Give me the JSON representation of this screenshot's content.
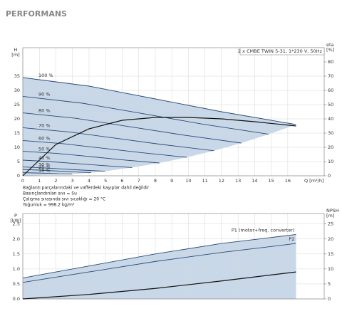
{
  "header": "PERFORMANS",
  "notes": [
    "Bağlantı parçalarındaki ve vafferdeki kayıplar dahil değildir",
    "Basınçlandırılan sıvı = Su",
    "Çalışma sırasında sıvı sıcaklığı = 20 °C",
    "Yoğunluk = 998.2 kg/m³"
  ],
  "chart_data": [
    {
      "type": "line",
      "title": "2 x CMBE TWIN 5-31, 1*230 V, 50Hz",
      "ylabel": "H",
      "yunit": "[m]",
      "y2label": "eta",
      "y2unit": "[%]",
      "xlabel": "Q [m³/h]",
      "xlim": [
        0,
        18.2
      ],
      "xticks": [
        0,
        1,
        2,
        3,
        4,
        5,
        6,
        7,
        8,
        9,
        10,
        11,
        12,
        13,
        14,
        15,
        16
      ],
      "ylim": [
        0,
        45
      ],
      "yticks": [
        0,
        5,
        10,
        15,
        20,
        25,
        30,
        35
      ],
      "y2lim": [
        0,
        90
      ],
      "y2ticks": [
        0,
        10,
        20,
        30,
        40,
        50,
        60,
        70,
        80
      ],
      "grid": true,
      "shade": true,
      "shade_color": "#c8d8e8",
      "series": [
        {
          "name": "100 %",
          "color": "#2b4a78",
          "x": [
            0,
            4,
            8,
            12,
            16.5
          ],
          "values": [
            34.5,
            31.5,
            27,
            22.5,
            18
          ]
        },
        {
          "name": "90 %",
          "color": "#2b4a78",
          "x": [
            0,
            3.6,
            7.2,
            10.8,
            14.85
          ],
          "values": [
            27.9,
            25.5,
            21.9,
            18.2,
            14.6
          ]
        },
        {
          "name": "80 %",
          "color": "#2b4a78",
          "x": [
            0,
            3.2,
            6.4,
            9.6,
            13.2
          ],
          "values": [
            22.1,
            20.2,
            17.3,
            14.4,
            11.5
          ]
        },
        {
          "name": "70 %",
          "color": "#2b4a78",
          "x": [
            0,
            2.8,
            5.6,
            8.4,
            11.55
          ],
          "values": [
            16.9,
            15.4,
            13.2,
            11,
            8.8
          ]
        },
        {
          "name": "60 %",
          "color": "#2b4a78",
          "x": [
            0,
            2.4,
            4.8,
            7.2,
            9.9
          ],
          "values": [
            12.4,
            11.3,
            9.7,
            8.1,
            6.5
          ]
        },
        {
          "name": "50 %",
          "color": "#2b4a78",
          "x": [
            0,
            2,
            4,
            6,
            8.25
          ],
          "values": [
            8.6,
            7.9,
            6.8,
            5.6,
            4.5
          ]
        },
        {
          "name": "40 %",
          "color": "#2b4a78",
          "x": [
            0,
            1.6,
            3.2,
            4.8,
            6.6
          ],
          "values": [
            5.5,
            5,
            4.3,
            3.6,
            2.9
          ]
        },
        {
          "name": "30 %",
          "color": "#2b4a78",
          "x": [
            0,
            1.2,
            2.4,
            3.6,
            4.95
          ],
          "values": [
            3.1,
            2.8,
            2.4,
            2,
            1.6
          ]
        },
        {
          "name": "25 %",
          "color": "#2b4a78",
          "x": [
            0,
            1,
            2,
            3,
            4.125
          ],
          "values": [
            2.2,
            2,
            1.7,
            1.4,
            1.1
          ]
        },
        {
          "name": "18 %",
          "color": "#2b4a78",
          "x": [
            0,
            0.72,
            1.44,
            2.16,
            2.97
          ],
          "values": [
            1.1,
            1,
            0.9,
            0.7,
            0.6
          ]
        },
        {
          "color": "#111111",
          "axis": "y2",
          "x": [
            0,
            2,
            4,
            6,
            8,
            10,
            12,
            14,
            16.5
          ],
          "values": [
            0,
            22,
            33,
            39,
            41,
            41,
            40,
            38,
            35
          ]
        }
      ]
    },
    {
      "type": "line",
      "ylabel": "P",
      "yunit": "[kW]",
      "y2label": "NPSH",
      "y2unit": "[m]",
      "xlim": [
        0,
        18.2
      ],
      "ylim": [
        0,
        2.85
      ],
      "yticks": [
        {
          "value": 0,
          "label": "0.0"
        },
        0.5,
        {
          "value": 1,
          "label": "1.0"
        },
        1.5,
        {
          "value": 2,
          "label": "2.0"
        },
        2.5
      ],
      "y2lim": [
        0,
        28.5
      ],
      "y2ticks": [
        0,
        5,
        10,
        15,
        20,
        25
      ],
      "grid": true,
      "shade": true,
      "shade_color": "#c8d8e8",
      "series": [
        {
          "name": "P1 (motor+freq. converter)",
          "color": "#2b4a78",
          "x": [
            0,
            4,
            8,
            12,
            16.5
          ],
          "values": [
            0.7,
            1.1,
            1.5,
            1.85,
            2.15
          ]
        },
        {
          "name": "P2",
          "color": "#2b4a78",
          "x": [
            0,
            4,
            8,
            12,
            16.5
          ],
          "values": [
            0.55,
            0.9,
            1.25,
            1.55,
            1.85
          ]
        },
        {
          "color": "#111111",
          "axis": "y2",
          "x": [
            0,
            4,
            8,
            12,
            16.5
          ],
          "values": [
            0,
            1.5,
            3.5,
            6,
            9
          ]
        }
      ]
    }
  ]
}
